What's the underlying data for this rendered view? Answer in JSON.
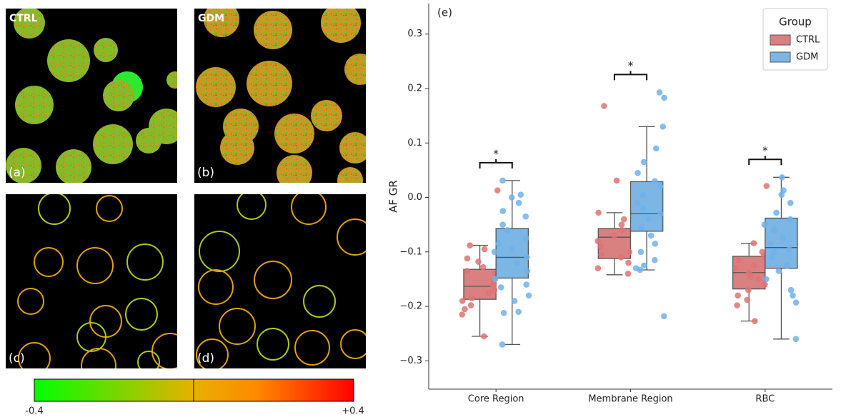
{
  "images": {
    "panels": [
      {
        "label": "(a)",
        "group": "CTRL"
      },
      {
        "label": "(b)",
        "group": "GDM"
      },
      {
        "label": "(c)"
      },
      {
        "label": "(d)"
      }
    ],
    "colorbar": {
      "min_label": "-0.4",
      "max_label": "+0.4"
    }
  },
  "chart_data": {
    "type": "box",
    "panel_label": "(e)",
    "ylabel": "AF GR",
    "categories": [
      "Core Region",
      "Membrane Region",
      "RBC"
    ],
    "ylim": [
      -0.352,
      0.356
    ],
    "yticks": [
      {
        "value": -0.3,
        "label": "−0.3"
      },
      {
        "value": -0.2,
        "label": "−0.2"
      },
      {
        "value": -0.1,
        "label": "−0.1"
      },
      {
        "value": 0,
        "label": "0.0"
      },
      0.1,
      0.2,
      0.3
    ],
    "legend": "upper right",
    "legend_title": "Group",
    "significance": [
      "*",
      "*",
      "*"
    ],
    "series": [
      {
        "name": "CTRL",
        "color": "#d98080",
        "point_color": "#e07272",
        "boxes": [
          {
            "whisker_low": -0.255,
            "q1": -0.187,
            "median": -0.163,
            "q3": -0.132,
            "whisker_high": -0.088
          },
          {
            "whisker_low": -0.142,
            "q1": -0.112,
            "median": -0.073,
            "q3": -0.057,
            "whisker_high": -0.028
          },
          {
            "whisker_low": -0.227,
            "q1": -0.168,
            "median": -0.138,
            "q3": -0.108,
            "whisker_high": -0.084
          }
        ],
        "points": [
          [
            0.013,
            -0.088,
            -0.095,
            -0.112,
            -0.118,
            -0.128,
            -0.135,
            -0.14,
            -0.152,
            -0.16,
            -0.163,
            -0.17,
            -0.175,
            -0.185,
            -0.19,
            -0.198,
            -0.205,
            -0.215,
            -0.255
          ],
          [
            0.168,
            0.031,
            -0.028,
            -0.04,
            -0.05,
            -0.06,
            -0.07,
            -0.08,
            -0.09,
            -0.1,
            -0.105,
            -0.11,
            -0.12,
            -0.13,
            -0.14
          ],
          [
            0.021,
            -0.084,
            -0.1,
            -0.108,
            -0.115,
            -0.125,
            -0.13,
            -0.138,
            -0.145,
            -0.15,
            -0.16,
            -0.17,
            -0.18,
            -0.188,
            -0.198,
            -0.227
          ]
        ]
      },
      {
        "name": "GDM",
        "color": "#7bb6e4",
        "point_color": "#6eb2ec",
        "boxes": [
          {
            "whisker_low": -0.27,
            "q1": -0.148,
            "median": -0.11,
            "q3": -0.057,
            "whisker_high": 0.031
          },
          {
            "whisker_low": -0.133,
            "q1": -0.062,
            "median": -0.03,
            "q3": 0.029,
            "whisker_high": 0.13
          },
          {
            "whisker_low": -0.26,
            "q1": -0.13,
            "median": -0.092,
            "q3": -0.038,
            "whisker_high": 0.037
          }
        ],
        "points": [
          [
            0.031,
            0.005,
            0.0,
            -0.01,
            -0.025,
            -0.035,
            -0.05,
            -0.06,
            -0.075,
            -0.085,
            -0.095,
            -0.1,
            -0.11,
            -0.12,
            -0.135,
            -0.15,
            -0.16,
            -0.165,
            -0.18,
            -0.19,
            -0.21,
            -0.212,
            -0.27
          ],
          [
            0.193,
            0.183,
            0.13,
            0.09,
            0.065,
            0.045,
            0.03,
            0.02,
            0.005,
            -0.01,
            -0.02,
            -0.03,
            -0.04,
            -0.055,
            -0.07,
            -0.085,
            -0.1,
            -0.115,
            -0.125,
            -0.13,
            -0.133,
            -0.218
          ],
          [
            0.037,
            0.013,
            0.005,
            -0.01,
            -0.028,
            -0.04,
            -0.05,
            -0.06,
            -0.075,
            -0.085,
            -0.095,
            -0.1,
            -0.11,
            -0.125,
            -0.135,
            -0.15,
            -0.17,
            -0.18,
            -0.193,
            -0.26
          ]
        ]
      }
    ]
  }
}
